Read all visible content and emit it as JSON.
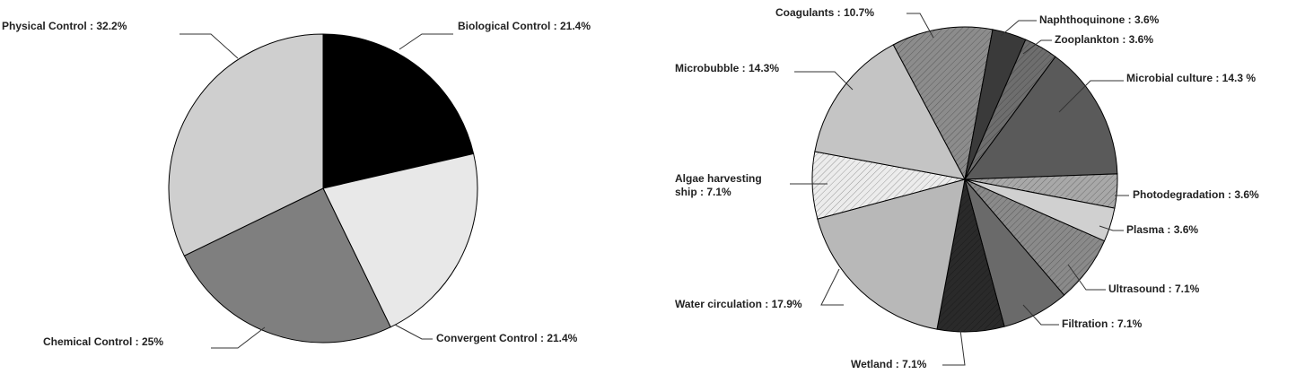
{
  "chart_data": [
    {
      "type": "pie",
      "categories": [
        "Biological Control",
        "Convergent Control",
        "Chemical Control",
        "Physical Control"
      ],
      "values": [
        21.4,
        21.4,
        25,
        32.2
      ],
      "value_labels": [
        "Biological Control : 21.4%",
        "Convergent Control : 21.4%",
        "Chemical Control : 25%",
        "Physical Control : 32.2%"
      ],
      "colors": [
        "#000000",
        "#e8e8e8",
        "#7f7f7f",
        "#cfcfcf"
      ]
    },
    {
      "type": "pie",
      "categories": [
        "Coagulants",
        "Naphthoquinone",
        "Zooplankton",
        "Microbial culture",
        "Photodegradation",
        "Plasma",
        "Ultrasound",
        "Filtration",
        "Wetland",
        "Water circulation",
        "Algae harvesting ship",
        "Microbubble"
      ],
      "values": [
        10.7,
        3.6,
        3.6,
        14.3,
        3.6,
        3.6,
        7.1,
        7.1,
        7.1,
        17.9,
        7.1,
        14.3
      ],
      "value_labels": [
        "Coagulants : 10.7%",
        "Naphthoquinone : 3.6%",
        "Zooplankton : 3.6%",
        "Microbial culture : 14.3 %",
        "Photodegradation : 3.6%",
        "Plasma : 3.6%",
        "Ultrasound : 7.1%",
        "Filtration : 7.1%",
        "Wetland : 7.1%",
        "Water circulation : 17.9%",
        "Algae harvesting\nship : 7.1%",
        "Microbubble : 14.3%"
      ],
      "colors": [
        "#8c8c8c",
        "#3a3a3a",
        "#6e6e6e",
        "#5a5a5a",
        "#a8a8a8",
        "#d0d0d0",
        "#8a8a8a",
        "#6a6a6a",
        "#2a2a2a",
        "#b8b8b8",
        "#ececec",
        "#c4c4c4"
      ]
    }
  ]
}
